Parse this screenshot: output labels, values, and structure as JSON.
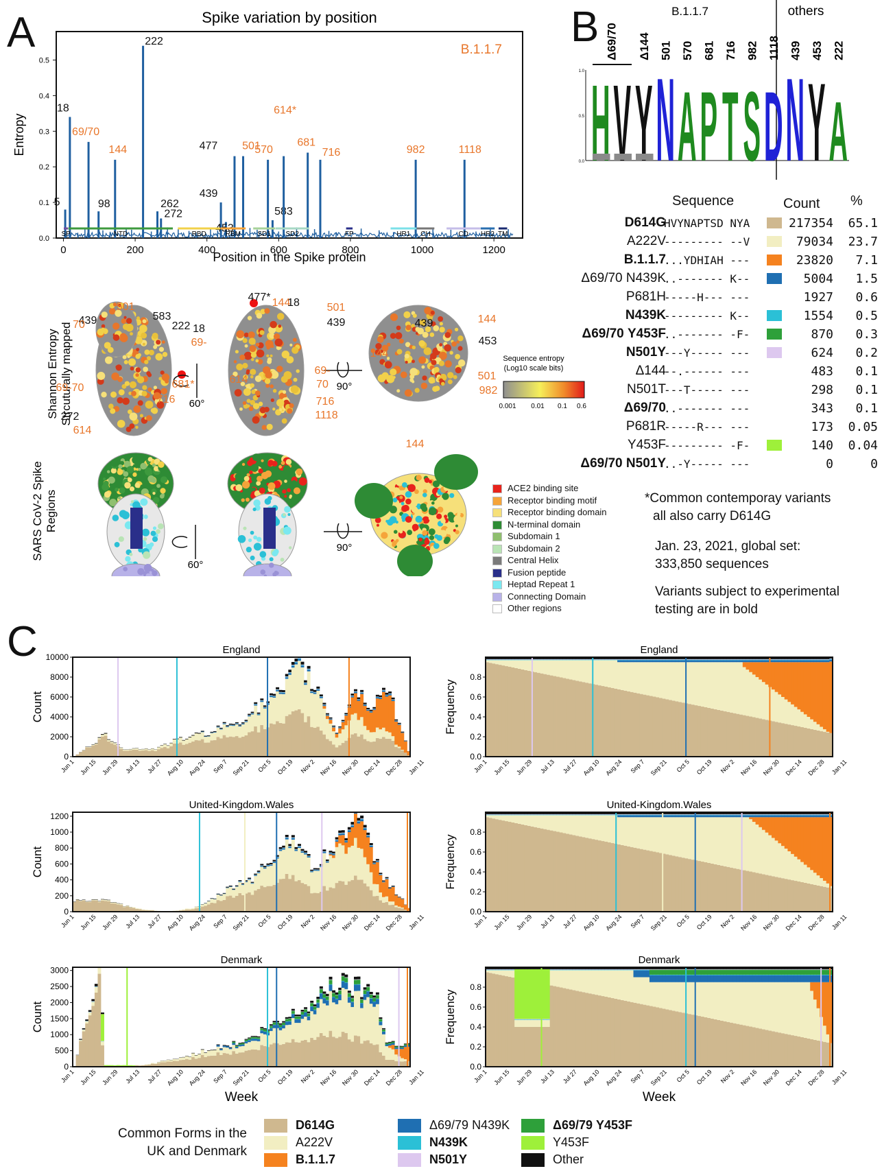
{
  "panels": {
    "a": "A",
    "b": "B",
    "c": "C"
  },
  "colors": {
    "d614g": "#cfb88f",
    "a222v": "#f2eec2",
    "b117": "#f5821f",
    "d6970n439k": "#1f6fb2",
    "n439k": "#2bc0d6",
    "d6970y453f": "#2ea03a",
    "n501y": "#ddc8ef",
    "y453f": "#9ef03a",
    "other": "#111111",
    "entropy_line": "#1f5fa0",
    "orange_label": "#e8762a"
  },
  "panel_a": {
    "chart_data": {
      "type": "line",
      "title": "Spike variation by position",
      "xlabel": "Position in the Spike protein",
      "ylabel": "Entropy",
      "ylim": [
        0,
        0.58
      ],
      "xlim": [
        -20,
        1280
      ],
      "xticks": [
        0,
        200,
        400,
        600,
        800,
        1000,
        1200
      ],
      "yticks": [
        0,
        0.1,
        0.2,
        0.3,
        0.4,
        0.5
      ],
      "ytick_labels": [
        "0.0",
        "0.1",
        "0.2",
        "0.3",
        "0.4",
        "0.5"
      ],
      "annotation": "B.1.1.7",
      "peaks": [
        {
          "x": 5,
          "y": 0.08,
          "label": "5",
          "orange": false
        },
        {
          "x": 18,
          "y": 0.34,
          "label": "18",
          "orange": false
        },
        {
          "x": 70,
          "y": 0.27,
          "label": "69/70",
          "orange": true
        },
        {
          "x": 98,
          "y": 0.075,
          "label": "98",
          "orange": false
        },
        {
          "x": 144,
          "y": 0.22,
          "label": "144",
          "orange": true
        },
        {
          "x": 222,
          "y": 0.54,
          "label": "222",
          "orange": false
        },
        {
          "x": 262,
          "y": 0.075,
          "label": "262",
          "orange": false
        },
        {
          "x": 272,
          "y": 0.055,
          "label": "272",
          "orange": false
        },
        {
          "x": 439,
          "y": 0.1,
          "label": "439",
          "orange": false
        },
        {
          "x": 453,
          "y": 0.045,
          "label": "453",
          "orange": false
        },
        {
          "x": 477,
          "y": 0.23,
          "label": "477",
          "orange": false
        },
        {
          "x": 501,
          "y": 0.23,
          "label": "501",
          "orange": true
        },
        {
          "x": 570,
          "y": 0.22,
          "label": "570",
          "orange": true
        },
        {
          "x": 583,
          "y": 0.05,
          "label": "583",
          "orange": false
        },
        {
          "x": 614,
          "y": 0.23,
          "label": "614*",
          "orange": true
        },
        {
          "x": 681,
          "y": 0.24,
          "label": "681",
          "orange": true
        },
        {
          "x": 716,
          "y": 0.22,
          "label": "716",
          "orange": true
        },
        {
          "x": 982,
          "y": 0.22,
          "label": "982",
          "orange": true
        },
        {
          "x": 1118,
          "y": 0.22,
          "label": "1118",
          "orange": true
        }
      ],
      "domains": [
        {
          "name": "SP",
          "start": 1,
          "end": 13,
          "color": "#6f4fa0"
        },
        {
          "name": "NTD",
          "start": 14,
          "end": 305,
          "color": "#3e9a3e"
        },
        {
          "name": "RBD",
          "start": 319,
          "end": 437,
          "color": "#f2d14a"
        },
        {
          "name": "RBM",
          "start": 438,
          "end": 508,
          "color": "#f5a43a"
        },
        {
          "name": "SD1",
          "start": 529,
          "end": 590,
          "color": "#a7d29a"
        },
        {
          "name": "SD2",
          "start": 591,
          "end": 685,
          "color": "#a7d8c5"
        },
        {
          "name": "FP",
          "start": 788,
          "end": 806,
          "color": "#2a2f8a"
        },
        {
          "name": "HR1",
          "start": 912,
          "end": 984,
          "color": "#7be0e8"
        },
        {
          "name": "CH",
          "start": 985,
          "end": 1034,
          "color": "#777777"
        },
        {
          "name": "CD",
          "start": 1068,
          "end": 1162,
          "color": "#c5bde8"
        },
        {
          "name": "HR2",
          "start": 1163,
          "end": 1202,
          "color": "#2a6fb0"
        },
        {
          "name": "TM",
          "start": 1213,
          "end": 1237,
          "color": "#1a2a70"
        }
      ]
    },
    "structure": {
      "row1_label": "Shannon Entropy\nStrcuturally mapped",
      "row1_label_l1": "Shannon Entropy",
      "row1_label_l2": "Strcuturally mapped",
      "row2_label_l1": "SARS CoV-2 Spike",
      "row2_label_l2": "Regions",
      "rot1": "60°",
      "rot2": "90°",
      "view1_labels": [
        {
          "t": "501",
          "o": true
        },
        {
          "t": "439",
          "o": false
        },
        {
          "t": "583",
          "o": false
        },
        {
          "t": "222",
          "o": false
        },
        {
          "t": "18",
          "o": false
        },
        {
          "t": "69-",
          "o": true
        },
        {
          "t": "70",
          "o": true
        },
        {
          "t": "69-70",
          "o": true
        },
        {
          "t": "272",
          "o": false
        },
        {
          "t": "614",
          "o": true
        },
        {
          "t": "681*",
          "o": true
        },
        {
          "t": "716",
          "o": true
        }
      ],
      "view2_labels": [
        {
          "t": "477*",
          "o": false
        },
        {
          "t": "144",
          "o": true
        },
        {
          "t": "18",
          "o": false
        },
        {
          "t": "501",
          "o": true
        },
        {
          "t": "439",
          "o": false
        },
        {
          "t": "614",
          "o": true
        },
        {
          "t": "69-",
          "o": true
        },
        {
          "t": "70",
          "o": true
        },
        {
          "t": "716",
          "o": true
        },
        {
          "t": "1118",
          "o": true
        }
      ],
      "view3_labels": [
        {
          "t": "439",
          "o": false
        },
        {
          "t": "144",
          "o": true
        },
        {
          "t": "453",
          "o": false
        },
        {
          "t": "144",
          "o": true
        },
        {
          "t": "501",
          "o": true
        },
        {
          "t": "982",
          "o": true
        },
        {
          "t": "144",
          "o": true
        }
      ],
      "colorbar_title_l1": "Sequence entropy",
      "colorbar_title_l2": "(Log10 scale bits)",
      "colorbar_ticks": [
        "0.001",
        "0.01",
        "0.1",
        "0.6"
      ],
      "regions_legend": [
        {
          "label": "ACE2 binding site",
          "color": "#e8231c"
        },
        {
          "label": "Receptor binding motif",
          "color": "#f5a43a"
        },
        {
          "label": "Receptor binding domain",
          "color": "#f6e07a"
        },
        {
          "label": "N-terminal domain",
          "color": "#2e8b35"
        },
        {
          "label": "Subdomain 1",
          "color": "#8fbf6f"
        },
        {
          "label": "Subdomain 2",
          "color": "#b9e4b5"
        },
        {
          "label": "Central Helix",
          "color": "#7a7a7a"
        },
        {
          "label": "Fusion peptide",
          "color": "#2a2f8a"
        },
        {
          "label": "Heptad Repeat 1",
          "color": "#7be8f0"
        },
        {
          "label": "Connecting Domain",
          "color": "#b8b2e8"
        },
        {
          "label": "Other regions",
          "color": "#ffffff"
        }
      ]
    }
  },
  "panel_b": {
    "header_left": "B.1.1.7",
    "header_right": "others",
    "positions": [
      "Δ69/70",
      "Δ144",
      "501",
      "570",
      "681",
      "716",
      "982",
      "1118",
      "439",
      "453",
      "222"
    ],
    "logo_letters": [
      "H",
      "V",
      "Y",
      "N",
      "A",
      "P",
      "T",
      "S",
      "D",
      "N",
      "Y",
      "A"
    ],
    "logo_colors": [
      "#1f8a1f",
      "#111111",
      "#111111",
      "#1f22d6",
      "#1f8a1f",
      "#1f8a1f",
      "#1f8a1f",
      "#1f8a1f",
      "#1f22d6",
      "#1f22d6",
      "#111111",
      "#1f8a1f"
    ],
    "logo_yticks": [
      "1.0",
      "0.5",
      "0.0"
    ],
    "table_headers": {
      "sequence": "Sequence",
      "count": "Count",
      "pct": "%"
    },
    "rows": [
      {
        "name": "D614G",
        "bold": true,
        "seq": "HVYNAPTSD NYA",
        "color": "#cfb88f",
        "count": "217354",
        "pct": "65.1"
      },
      {
        "name": "A222V",
        "bold": false,
        "seq": "--------- --V",
        "color": "#f2eec2",
        "count": "79034",
        "pct": "23.7"
      },
      {
        "name": "B.1.1.7",
        "bold": true,
        "seq": "...YDHIAH ---",
        "color": "#f5821f",
        "count": "23820",
        "pct": "7.1"
      },
      {
        "name": "Δ69/70 N439K",
        "bold": false,
        "seq": "..------- K--",
        "color": "#1f6fb2",
        "count": "5004",
        "pct": "1.5"
      },
      {
        "name": "P681H",
        "bold": false,
        "seq": "-----H--- ---",
        "color": "",
        "count": "1927",
        "pct": "0.6"
      },
      {
        "name": "N439K",
        "bold": true,
        "seq": "--------- K--",
        "color": "#2bc0d6",
        "count": "1554",
        "pct": "0.5"
      },
      {
        "name": "Δ69/70 Y453F",
        "bold": true,
        "seq": "..------- -F-",
        "color": "#2ea03a",
        "count": "870",
        "pct": "0.3"
      },
      {
        "name": "N501Y",
        "bold": true,
        "seq": "---Y----- ---",
        "color": "#ddc8ef",
        "count": "624",
        "pct": "0.2"
      },
      {
        "name": "Δ144",
        "bold": false,
        "seq": "--.------ ---",
        "color": "",
        "count": "483",
        "pct": "0.1"
      },
      {
        "name": "N501T",
        "bold": false,
        "seq": "---T----- ---",
        "color": "",
        "count": "298",
        "pct": "0.1"
      },
      {
        "name": "Δ69/70",
        "bold": true,
        "seq": "..------- ---",
        "color": "",
        "count": "343",
        "pct": "0.1"
      },
      {
        "name": "P681R",
        "bold": false,
        "seq": "-----R--- ---",
        "color": "",
        "count": "173",
        "pct": "0.05"
      },
      {
        "name": "Y453F",
        "bold": false,
        "seq": "--------- -F-",
        "color": "#9ef03a",
        "count": "140",
        "pct": "0.04"
      },
      {
        "name": "Δ69/70 N501Y",
        "bold": true,
        "seq": "..-Y----- ---",
        "color": "",
        "count": "0",
        "pct": "0"
      }
    ],
    "note1_l1": "*Common contemporay variants",
    "note1_l2": "all also carry D614G",
    "note2_l1": "Jan. 23, 2021, global set:",
    "note2_l2": "333,850 sequences",
    "note3_l1": "Variants subject to experimental",
    "note3_l2": "testing are in bold"
  },
  "panel_c": {
    "xlabel": "Week",
    "ylabel_count": "Count",
    "ylabel_freq": "Frequency",
    "xtick_labels": [
      "Jun 1",
      "Jun 15",
      "Jun 29",
      "Jul 13",
      "Jul 27",
      "Aug 10",
      "Aug 24",
      "Sep 7",
      "Sep 21",
      "Oct 5",
      "Oct 19",
      "Nov 2",
      "Nov 16",
      "Nov 30",
      "Dec 14",
      "Dec 28",
      "Jan 11"
    ],
    "freq_yticks": [
      "0.0",
      "0.2",
      "0.4",
      "0.6",
      "0.8"
    ],
    "series_order": [
      "D614G",
      "A222V",
      "B.1.1.7",
      "Δ69/79 N439K",
      "N439K",
      "Δ69/79 Y453F",
      "N501Y",
      "Y453F",
      "Other"
    ],
    "legend_title_l1": "Common Forms in the",
    "legend_title_l2": "UK and Denmark",
    "legend": [
      {
        "label": "D614G",
        "color": "#cfb88f",
        "bold": true
      },
      {
        "label": "A222V",
        "color": "#f2eec2",
        "bold": false
      },
      {
        "label": "B.1.1.7",
        "color": "#f5821f",
        "bold": true
      },
      {
        "label": "Δ69/79 N439K",
        "color": "#1f6fb2",
        "bold": false
      },
      {
        "label": "N439K",
        "color": "#2bc0d6",
        "bold": true
      },
      {
        "label": "N501Y",
        "color": "#ddc8ef",
        "bold": true
      },
      {
        "label": "Δ69/79 Y453F",
        "color": "#2ea03a",
        "bold": true
      },
      {
        "label": "Y453F",
        "color": "#9ef03a",
        "bold": false
      },
      {
        "label": "Other",
        "color": "#111111",
        "bold": false
      }
    ],
    "charts": [
      {
        "title": "England",
        "ymax": 10000,
        "yticks": [
          0,
          2000,
          4000,
          6000,
          8000,
          10000
        ],
        "count_key": [
          [
            0,
            0
          ],
          [
            10,
            2200
          ],
          [
            16,
            800
          ],
          [
            26,
            800
          ],
          [
            34,
            1800
          ],
          [
            42,
            2400
          ],
          [
            52,
            3500
          ],
          [
            60,
            5200
          ],
          [
            66,
            6300
          ],
          [
            72,
            9300
          ],
          [
            78,
            6800
          ],
          [
            84,
            2500
          ],
          [
            90,
            6800
          ],
          [
            95,
            5000
          ],
          [
            100,
            7000
          ],
          [
            107,
            600
          ]
        ],
        "b117_onset": 80,
        "b117_start_freq": 0.05,
        "markers": {
          "n501y": 10,
          "n439k": 23,
          "d6970n439k": 43,
          "b117": 61
        }
      },
      {
        "title": "United-Kingdom.Wales",
        "ymax": 1250,
        "yticks": [
          0,
          200,
          400,
          600,
          800,
          1000,
          1200
        ],
        "count_key": [
          [
            0,
            150
          ],
          [
            10,
            140
          ],
          [
            20,
            40
          ],
          [
            30,
            0
          ],
          [
            40,
            60
          ],
          [
            52,
            350
          ],
          [
            58,
            450
          ],
          [
            64,
            700
          ],
          [
            70,
            1000
          ],
          [
            76,
            550
          ],
          [
            82,
            750
          ],
          [
            90,
            1250
          ],
          [
            98,
            500
          ],
          [
            107,
            50
          ]
        ],
        "b117_onset": 82,
        "b117_start_freq": 0.02,
        "markers": {
          "n439k": 28,
          "a222v": 38,
          "d6970n439k": 45,
          "n501y": 55,
          "b117": 76
        }
      },
      {
        "title": "Denmark",
        "ymax": 3100,
        "yticks": [
          0,
          500,
          1000,
          1500,
          2000,
          2500,
          3000
        ],
        "count_key": [
          [
            0,
            0
          ],
          [
            8,
            3000
          ],
          [
            10,
            50
          ],
          [
            22,
            50
          ],
          [
            35,
            300
          ],
          [
            45,
            600
          ],
          [
            55,
            800
          ],
          [
            60,
            1100
          ],
          [
            66,
            1400
          ],
          [
            72,
            1800
          ],
          [
            78,
            2100
          ],
          [
            82,
            2700
          ],
          [
            88,
            2600
          ],
          [
            96,
            2400
          ],
          [
            100,
            800
          ],
          [
            107,
            700
          ]
        ],
        "b117_onset": 100,
        "b117_start_freq": 0.0,
        "markers": {
          "y453f": 12,
          "n439k": 43,
          "d6970n439k": 45,
          "n501y": 72,
          "b117": 78
        }
      }
    ]
  }
}
